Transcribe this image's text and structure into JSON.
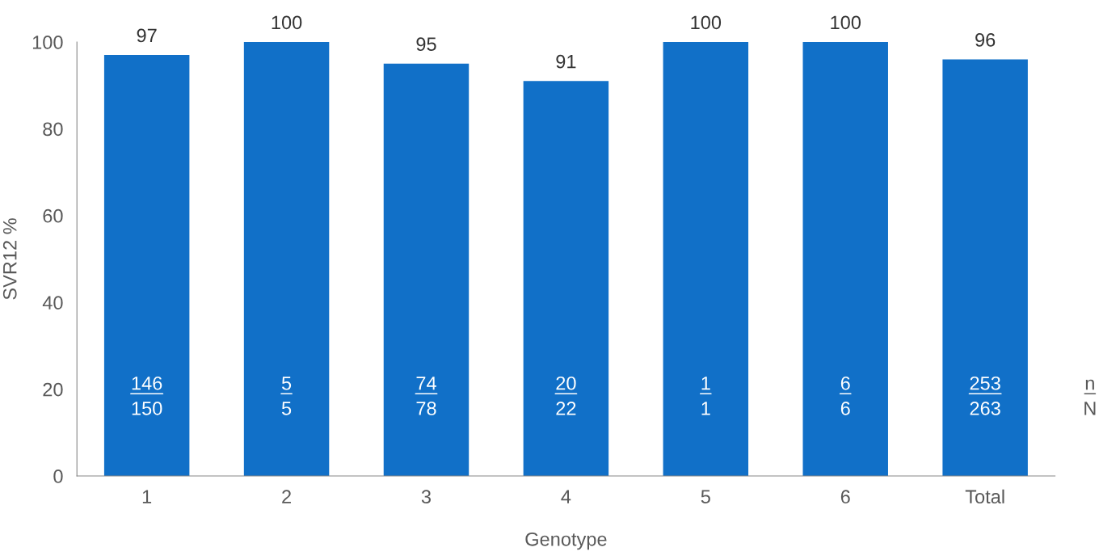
{
  "chart_data": {
    "type": "bar",
    "xlabel": "Genotype",
    "ylabel": "SVR12 %",
    "categories": [
      "1",
      "2",
      "3",
      "4",
      "5",
      "6",
      "Total"
    ],
    "values": [
      97,
      100,
      95,
      91,
      100,
      100,
      96
    ],
    "color": "#1170c8",
    "ylim": [
      0,
      100
    ],
    "yticks": [
      0,
      20,
      40,
      60,
      80,
      100
    ],
    "data_labels": true,
    "grid": false,
    "annotations": [
      "146",
      "150",
      "5",
      "5",
      "74",
      "78",
      "20",
      "22",
      "1",
      "1",
      "6",
      "6",
      "253",
      "263",
      "n",
      "N"
    ]
  }
}
